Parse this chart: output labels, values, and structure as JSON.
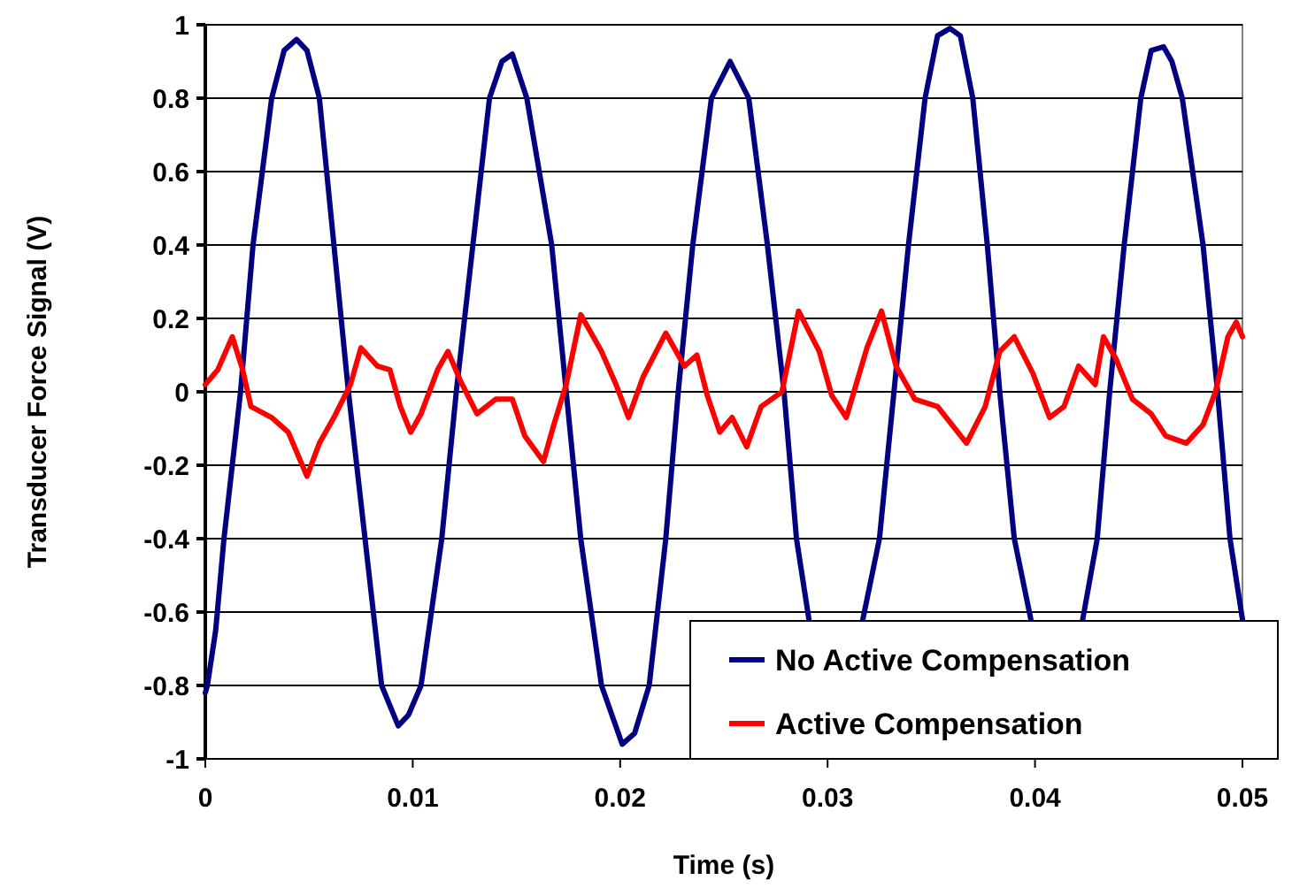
{
  "chart_data": {
    "type": "line",
    "xlabel": "Time (s)",
    "ylabel": "Transducer Force Signal (V)",
    "xlim": [
      0,
      0.05
    ],
    "xticks": [
      0,
      0.01,
      0.02,
      0.03,
      0.04,
      0.05
    ],
    "ylim": [
      -1,
      1
    ],
    "yticks": [
      -1,
      -0.8,
      -0.6,
      -0.4,
      -0.2,
      0,
      0.2,
      0.4,
      0.6,
      0.8,
      1
    ],
    "grid": "y",
    "legend": "bottom right",
    "marker": "none",
    "line_style": "solid",
    "series": [
      {
        "name": "No Active Compensation",
        "color": "#000080",
        "x": [
          0,
          0.0001,
          0.0005,
          0.0009,
          0.0017,
          0.0023,
          0.0032,
          0.0038,
          0.0044,
          0.0049,
          0.0055,
          0.0062,
          0.0069,
          0.0077,
          0.0085,
          0.0093,
          0.0098,
          0.0104,
          0.0114,
          0.0121,
          0.0129,
          0.0137,
          0.0143,
          0.0148,
          0.0155,
          0.0167,
          0.0174,
          0.0181,
          0.0191,
          0.0201,
          0.0207,
          0.0214,
          0.0222,
          0.0228,
          0.0235,
          0.0244,
          0.0253,
          0.0262,
          0.0271,
          0.0279,
          0.0285,
          0.0291,
          0.0304,
          0.0317,
          0.0325,
          0.0332,
          0.0339,
          0.0347,
          0.0353,
          0.0359,
          0.0364,
          0.037,
          0.0377,
          0.0383,
          0.039,
          0.0398,
          0.041,
          0.0423,
          0.043,
          0.0436,
          0.0443,
          0.0451,
          0.0456,
          0.0462,
          0.0466,
          0.0471,
          0.0481,
          0.0488,
          0.0494,
          0.05
        ],
        "values": [
          -0.82,
          -0.8,
          -0.65,
          -0.4,
          0,
          0.4,
          0.8,
          0.93,
          0.96,
          0.93,
          0.8,
          0.4,
          0,
          -0.4,
          -0.8,
          -0.91,
          -0.88,
          -0.8,
          -0.4,
          0,
          0.4,
          0.8,
          0.9,
          0.92,
          0.8,
          0.4,
          0,
          -0.4,
          -0.8,
          -0.96,
          -0.93,
          -0.8,
          -0.4,
          0,
          0.4,
          0.8,
          0.9,
          0.8,
          0.4,
          0,
          -0.4,
          -0.62,
          null,
          -0.62,
          -0.4,
          0,
          0.4,
          0.8,
          0.97,
          0.99,
          0.97,
          0.8,
          0.4,
          0,
          -0.4,
          -0.62,
          null,
          -0.62,
          -0.4,
          0,
          0.4,
          0.8,
          0.93,
          0.94,
          0.9,
          0.8,
          0.4,
          0,
          -0.4,
          -0.62
        ]
      },
      {
        "name": "Active Compensation",
        "color": "#ff0000",
        "x": [
          0,
          0.0006,
          0.0013,
          0.0018,
          0.0022,
          0.0032,
          0.004,
          0.0049,
          0.0055,
          0.0062,
          0.007,
          0.0075,
          0.0083,
          0.0089,
          0.0094,
          0.0099,
          0.0104,
          0.0112,
          0.0117,
          0.0123,
          0.0131,
          0.014,
          0.0148,
          0.0154,
          0.0163,
          0.0168,
          0.0174,
          0.0181,
          0.0191,
          0.0198,
          0.0204,
          0.0211,
          0.0222,
          0.0231,
          0.0237,
          0.0242,
          0.0248,
          0.0254,
          0.0261,
          0.0268,
          0.0278,
          0.0286,
          0.0296,
          0.0302,
          0.0309,
          0.0319,
          0.0326,
          0.0333,
          0.0342,
          0.0353,
          0.0367,
          0.0376,
          0.0383,
          0.039,
          0.0399,
          0.0407,
          0.0414,
          0.0421,
          0.0429,
          0.0433,
          0.0439,
          0.0447,
          0.0456,
          0.0463,
          0.0473,
          0.0481,
          0.0487,
          0.0493,
          0.0497,
          0.05
        ],
        "values": [
          0.02,
          0.06,
          0.15,
          0.06,
          -0.04,
          -0.07,
          -0.11,
          -0.23,
          -0.14,
          -0.07,
          0.02,
          0.12,
          0.07,
          0.06,
          -0.04,
          -0.11,
          -0.06,
          0.06,
          0.11,
          0.03,
          -0.06,
          -0.02,
          -0.02,
          -0.12,
          -0.19,
          -0.09,
          0.02,
          0.21,
          0.11,
          0.02,
          -0.07,
          0.04,
          0.16,
          0.07,
          0.1,
          -0.01,
          -0.11,
          -0.07,
          -0.15,
          -0.04,
          0,
          0.22,
          0.11,
          -0.01,
          -0.07,
          0.12,
          0.22,
          0.07,
          -0.02,
          -0.04,
          -0.14,
          -0.04,
          0.11,
          0.15,
          0.05,
          -0.07,
          -0.04,
          0.07,
          0.02,
          0.15,
          0.09,
          -0.02,
          -0.06,
          -0.12,
          -0.14,
          -0.09,
          0,
          0.15,
          0.19,
          0.15
        ]
      }
    ]
  }
}
